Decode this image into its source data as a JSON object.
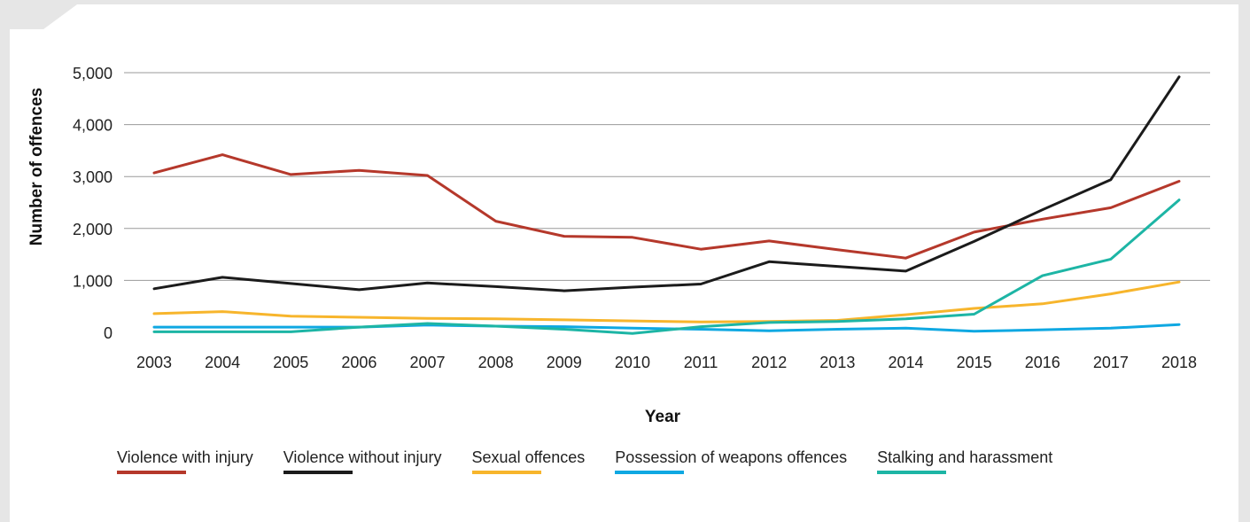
{
  "chart_data": {
    "type": "line",
    "title": "",
    "xlabel": "Year",
    "ylabel": "Number of offences",
    "x": [
      "2003",
      "2004",
      "2005",
      "2006",
      "2007",
      "2008",
      "2009",
      "2010",
      "2011",
      "2012",
      "2013",
      "2014",
      "2015",
      "2016",
      "2017",
      "2018"
    ],
    "ylim": [
      0,
      5000
    ],
    "yticks": [
      0,
      1000,
      2000,
      3000,
      4000,
      5000
    ],
    "ytick_labels": [
      "0",
      "1,000",
      "2,000",
      "3,000",
      "4,000",
      "5,000"
    ],
    "grid": "horizontal",
    "legend_position": "bottom",
    "series": [
      {
        "name": "Violence with injury",
        "color": "#b5382b",
        "values": [
          3070,
          3420,
          3040,
          3120,
          3020,
          2140,
          1850,
          1830,
          1600,
          1760,
          1590,
          1430,
          1930,
          2180,
          2400,
          2910
        ]
      },
      {
        "name": "Violence without injury",
        "color": "#1b1b1b",
        "values": [
          840,
          1060,
          940,
          820,
          950,
          880,
          800,
          870,
          930,
          1360,
          1270,
          1180,
          1750,
          2360,
          2940,
          4920
        ]
      },
      {
        "name": "Sexual offences",
        "color": "#f7b52c",
        "values": [
          360,
          400,
          310,
          290,
          270,
          260,
          240,
          220,
          200,
          210,
          230,
          340,
          460,
          550,
          740,
          970
        ]
      },
      {
        "name": "Possession of weapons offences",
        "color": "#0fa8e2",
        "values": [
          100,
          100,
          100,
          100,
          140,
          120,
          110,
          80,
          60,
          30,
          60,
          80,
          20,
          50,
          80,
          150
        ]
      },
      {
        "name": "Stalking and harassment",
        "color": "#1db5a5",
        "values": [
          10,
          10,
          10,
          100,
          170,
          120,
          60,
          -20,
          110,
          190,
          210,
          260,
          350,
          1090,
          1410,
          2550
        ]
      }
    ]
  }
}
